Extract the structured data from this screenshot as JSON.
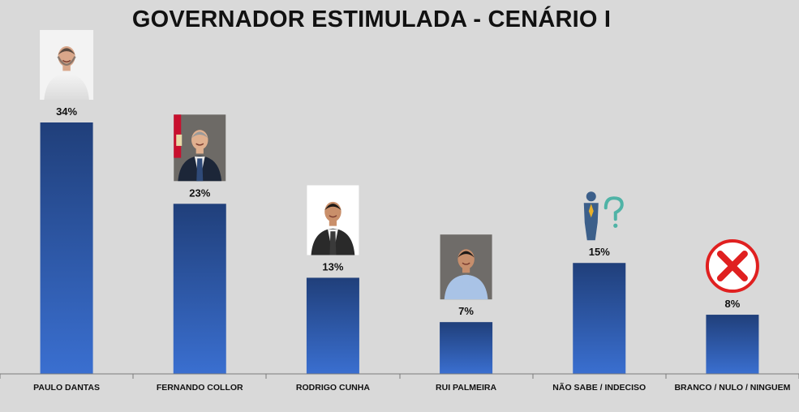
{
  "chart_data": {
    "type": "bar",
    "title": "GOVERNADOR ESTIMULADA - CENÁRIO I",
    "categories": [
      "PAULO DANTAS",
      "FERNANDO COLLOR",
      "RODRIGO CUNHA",
      "RUI PALMEIRA",
      "NÃO SABE / INDECISO",
      "BRANCO / NULO / NINGUEM"
    ],
    "values": [
      34,
      23,
      13,
      7,
      15,
      8
    ],
    "value_labels": [
      "34%",
      "23%",
      "13%",
      "7%",
      "15%",
      "8%"
    ],
    "unit": "%",
    "ylim": [
      0,
      34
    ],
    "grid": false,
    "legend": "none",
    "bar_color_top": "#203f7a",
    "bar_color_bottom": "#3a6fd0",
    "icons": [
      "candidate-photo",
      "candidate-photo",
      "candidate-photo",
      "candidate-photo",
      "question-person-icon",
      "red-x-icon"
    ]
  }
}
